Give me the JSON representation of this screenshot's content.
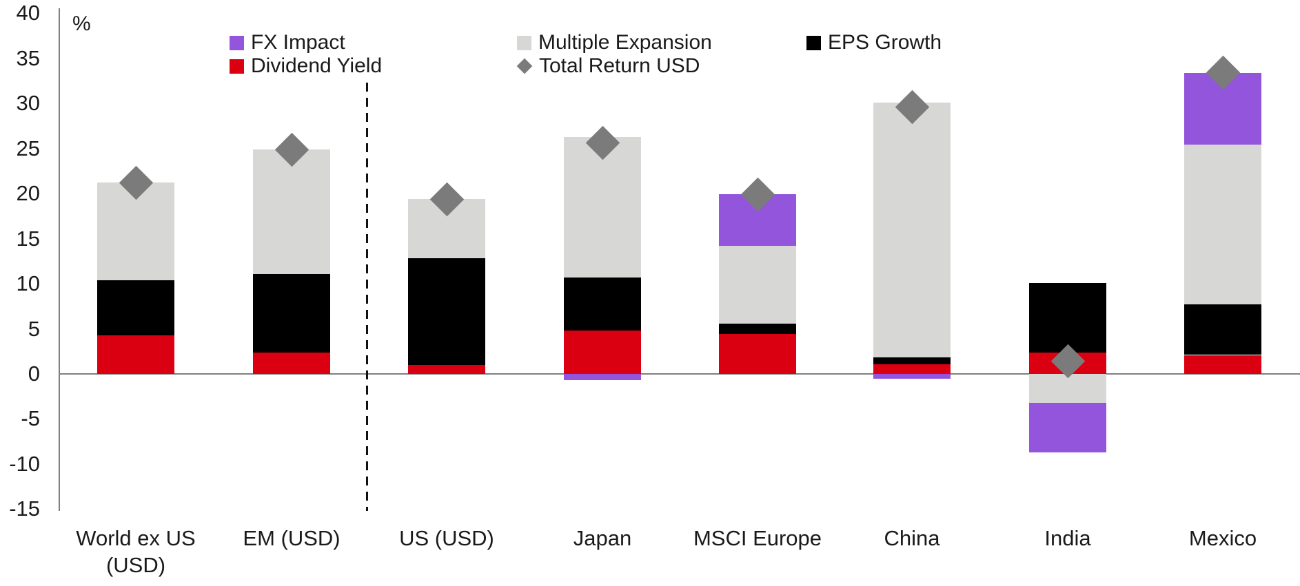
{
  "chart_data": {
    "type": "bar",
    "subtype": "stacked-bar-with-total-markers",
    "unit_label": "%",
    "categories": [
      "World ex US (USD)",
      "EM (USD)",
      "US (USD)",
      "Japan",
      "MSCI Europe",
      "China",
      "India",
      "Mexico"
    ],
    "series": [
      {
        "name": "Dividend Yield",
        "color": "#DB0011",
        "values": [
          4.3,
          2.4,
          1.0,
          4.8,
          4.4,
          1.1,
          2.4,
          2.1
        ]
      },
      {
        "name": "EPS Growth",
        "color": "#000000",
        "values": [
          6.1,
          8.7,
          11.8,
          5.9,
          1.2,
          0.7,
          7.7,
          5.6
        ]
      },
      {
        "name": "Multiple Expansion",
        "color": "#D7D7D5",
        "values": [
          10.8,
          13.8,
          6.6,
          15.6,
          8.6,
          28.3,
          -3.2,
          17.7
        ]
      },
      {
        "name": "FX Impact",
        "color": "#9355DC",
        "values": [
          0,
          0,
          0,
          -0.7,
          5.7,
          -0.5,
          -5.5,
          8.0
        ]
      }
    ],
    "marker_series": {
      "name": "Total Return USD",
      "color": "#7B7B7B",
      "shape": "diamond",
      "values": [
        21.2,
        24.9,
        19.4,
        25.6,
        19.9,
        29.6,
        1.4,
        33.4
      ]
    },
    "y_axis": {
      "ticks": [
        40,
        35,
        30,
        25,
        20,
        15,
        10,
        5,
        0,
        -5,
        -10,
        -15
      ],
      "min": -15,
      "max": 40
    },
    "separator_after_category_index": 1,
    "grid": "off",
    "legend_position": "top",
    "legend": {
      "rows": [
        {
          "items": [
            {
              "label": "FX Impact",
              "swatch": "square",
              "color": "#9355DC"
            },
            {
              "label": "Multiple Expansion",
              "swatch": "square",
              "color": "#D7D7D5"
            },
            {
              "label": "EPS Growth",
              "swatch": "square",
              "color": "#000000"
            }
          ]
        },
        {
          "items": [
            {
              "label": "Dividend Yield",
              "swatch": "square",
              "color": "#DB0011"
            },
            {
              "label": "Total Return USD",
              "swatch": "diamond",
              "color": "#7B7B7B"
            }
          ]
        }
      ]
    },
    "colors": {
      "axis": "#808080",
      "text": "#1A1A1A",
      "separator": "#111111"
    }
  }
}
